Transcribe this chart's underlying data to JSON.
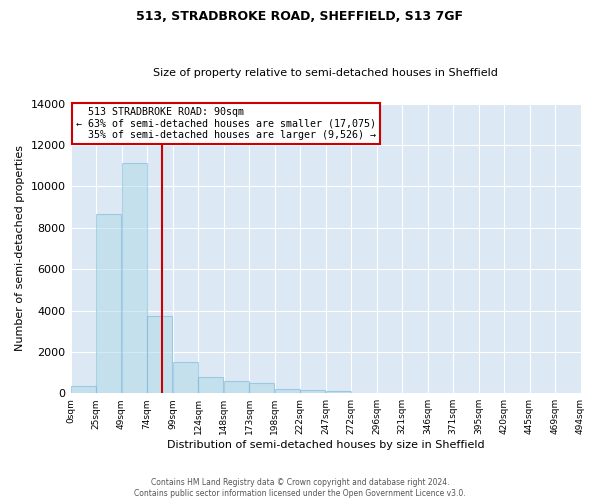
{
  "title1": "513, STRADBROKE ROAD, SHEFFIELD, S13 7GF",
  "title2": "Size of property relative to semi-detached houses in Sheffield",
  "xlabel": "Distribution of semi-detached houses by size in Sheffield",
  "ylabel": "Number of semi-detached properties",
  "property_size": 90,
  "property_label": "513 STRADBROKE ROAD: 90sqm",
  "pct_smaller": 63,
  "pct_larger": 35,
  "n_smaller": 17075,
  "n_larger": 9526,
  "bin_edges": [
    0,
    25,
    50,
    75,
    100,
    125,
    150,
    175,
    200,
    225,
    250,
    275,
    300,
    325,
    350,
    375,
    400,
    425,
    450,
    475,
    500
  ],
  "bar_heights": [
    350,
    8650,
    11150,
    3750,
    1500,
    800,
    600,
    500,
    200,
    150,
    100,
    0,
    0,
    0,
    0,
    0,
    0,
    0,
    0,
    0
  ],
  "bar_color": "#add8e6",
  "bar_edge_color": "#6baed6",
  "bar_fill_alpha": 0.5,
  "red_line_color": "#cc0000",
  "annotation_box_color": "#cc0000",
  "background_color": "#dce9f5",
  "ylim": [
    0,
    14000
  ],
  "yticks": [
    0,
    2000,
    4000,
    6000,
    8000,
    10000,
    12000,
    14000
  ],
  "xtick_labels": [
    "0sqm",
    "25sqm",
    "49sqm",
    "74sqm",
    "99sqm",
    "124sqm",
    "148sqm",
    "173sqm",
    "198sqm",
    "222sqm",
    "247sqm",
    "272sqm",
    "296sqm",
    "321sqm",
    "346sqm",
    "371sqm",
    "395sqm",
    "420sqm",
    "445sqm",
    "469sqm",
    "494sqm"
  ],
  "footer_text": "Contains HM Land Registry data © Crown copyright and database right 2024.\nContains public sector information licensed under the Open Government Licence v3.0.",
  "grid_color": "#ffffff",
  "title1_fontsize": 9,
  "title2_fontsize": 8
}
